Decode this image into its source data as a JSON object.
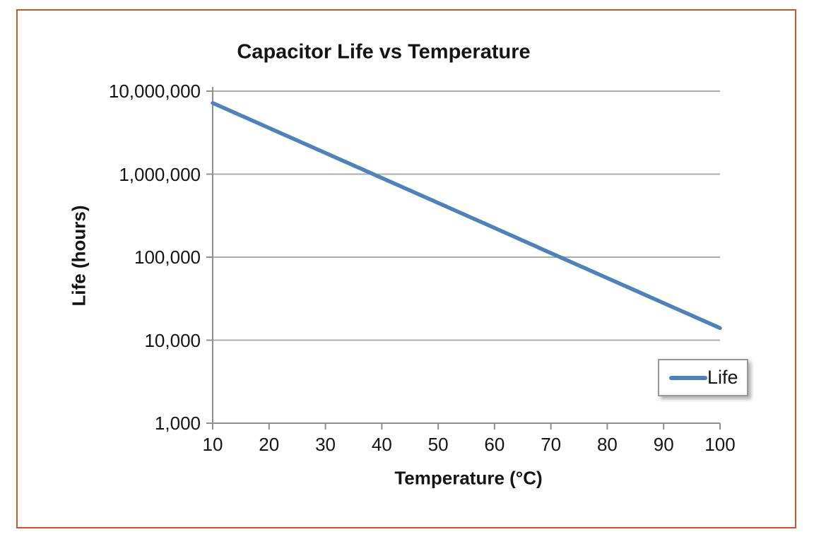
{
  "frame": {
    "border_color": "#D0532C"
  },
  "chart_data": {
    "type": "line",
    "title": "Capacitor Life vs Temperature",
    "xlabel": "Temperature (°C)",
    "ylabel": "Life (hours)",
    "x": [
      10,
      20,
      30,
      40,
      50,
      60,
      70,
      80,
      90,
      100
    ],
    "series": [
      {
        "name": "Life",
        "color": "#4F81BD",
        "values": [
          7200000,
          3600000,
          1800000,
          900000,
          450000,
          225000,
          112000,
          56000,
          28000,
          14000
        ]
      }
    ],
    "x_ticks": [
      {
        "value": 10,
        "label": "10"
      },
      {
        "value": 20,
        "label": "20"
      },
      {
        "value": 30,
        "label": "30"
      },
      {
        "value": 40,
        "label": "40"
      },
      {
        "value": 50,
        "label": "50"
      },
      {
        "value": 60,
        "label": "60"
      },
      {
        "value": 70,
        "label": "70"
      },
      {
        "value": 80,
        "label": "80"
      },
      {
        "value": 90,
        "label": "90"
      },
      {
        "value": 100,
        "label": "100"
      }
    ],
    "y_ticks": [
      {
        "value": 1000,
        "label": "1,000"
      },
      {
        "value": 10000,
        "label": "10,000"
      },
      {
        "value": 100000,
        "label": "100,000"
      },
      {
        "value": 1000000,
        "label": "1,000,000"
      },
      {
        "value": 10000000,
        "label": "10,000,000"
      }
    ],
    "xlim": [
      10,
      100
    ],
    "ylim": [
      1000,
      10000000
    ],
    "y_scale": "log",
    "grid": "horizontal",
    "gridline_color": "#ABABAB",
    "axis_color": "#8F8F8F",
    "legend_position": "bottom-right"
  }
}
